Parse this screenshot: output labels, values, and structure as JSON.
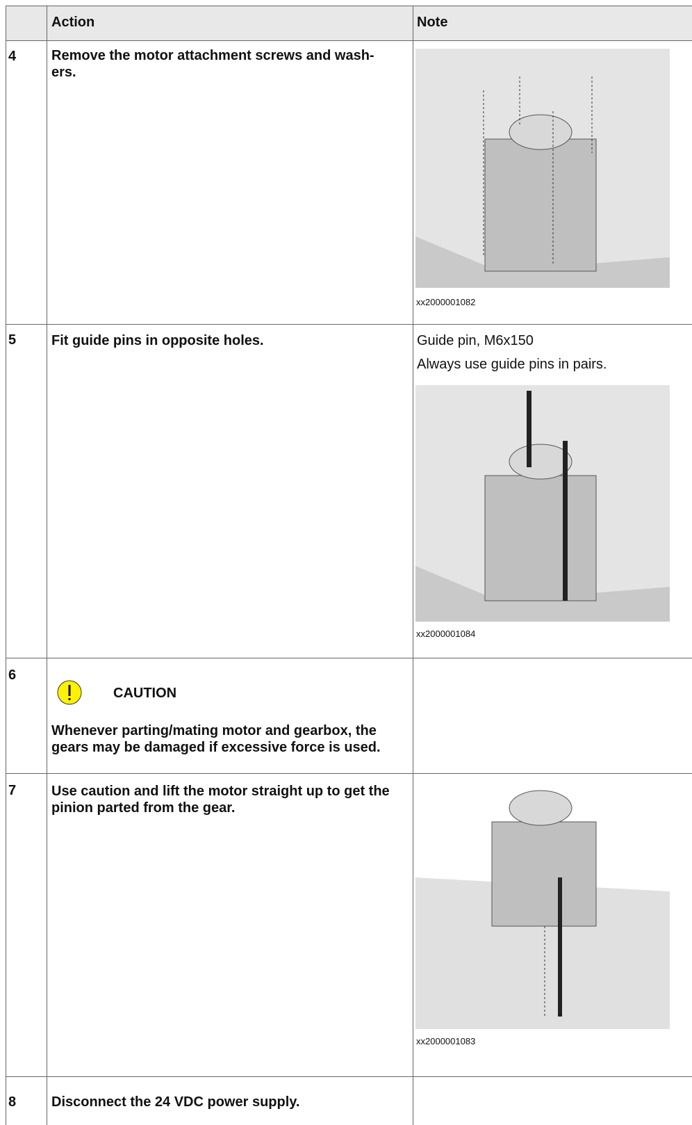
{
  "header": {
    "number": "",
    "action": "Action",
    "note": "Note"
  },
  "rows": [
    {
      "number": "4",
      "action": "Remove the motor attachment screws and wash-\ners.",
      "figure_id": "xx2000001082"
    },
    {
      "number": "5",
      "action": "Fit guide pins in opposite holes.",
      "note_lines": [
        "Guide pin, M6x150",
        "Always use guide pins in pairs."
      ],
      "figure_id": "xx2000001084"
    },
    {
      "number": "6",
      "caution_title": "CAUTION",
      "caution_text": "Whenever parting/mating motor and gearbox, the gears may be damaged if excessive force is used."
    },
    {
      "number": "7",
      "action": "Use caution and lift the motor straight up to get the pinion parted from the gear.",
      "figure_id": "xx2000001083"
    },
    {
      "number": "8",
      "action": "Disconnect the 24 VDC power supply."
    }
  ]
}
